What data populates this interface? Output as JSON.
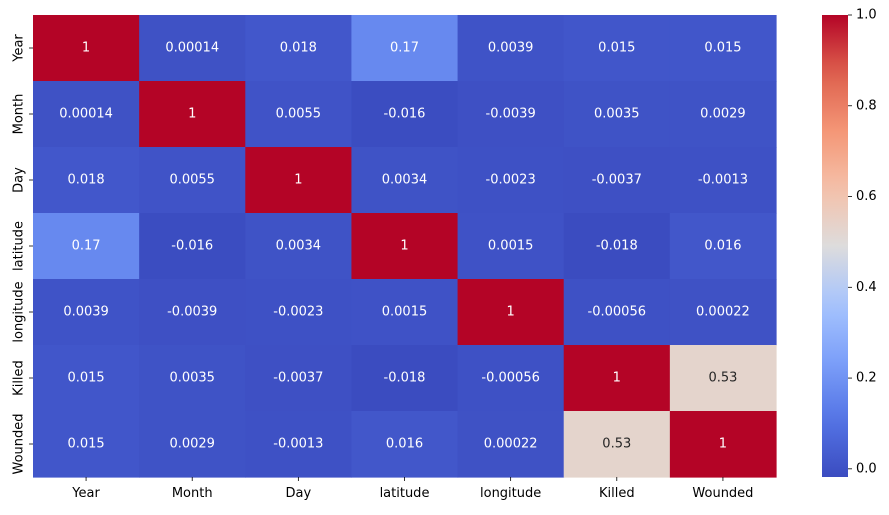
{
  "chart_data": {
    "type": "heatmap",
    "title": "",
    "xlabel": "",
    "ylabel": "",
    "x_categories": [
      "Year",
      "Month",
      "Day",
      "latitude",
      "longitude",
      "Killed",
      "Wounded"
    ],
    "y_categories": [
      "Year",
      "Month",
      "Day",
      "latitude",
      "longitude",
      "Killed",
      "Wounded"
    ],
    "values": [
      [
        1,
        0.00014,
        0.018,
        0.17,
        0.0039,
        0.015,
        0.015
      ],
      [
        0.00014,
        1,
        0.0055,
        -0.016,
        -0.0039,
        0.0035,
        0.0029
      ],
      [
        0.018,
        0.0055,
        1,
        0.0034,
        -0.0023,
        -0.0037,
        -0.0013
      ],
      [
        0.17,
        -0.016,
        0.0034,
        1,
        0.0015,
        -0.018,
        0.016
      ],
      [
        0.0039,
        -0.0039,
        -0.0023,
        0.0015,
        1,
        -0.00056,
        0.00022
      ],
      [
        0.015,
        0.0035,
        -0.0037,
        -0.018,
        -0.00056,
        1,
        0.53
      ],
      [
        0.015,
        0.0029,
        -0.0013,
        0.016,
        0.00022,
        0.53,
        1
      ]
    ],
    "annotations": [
      [
        "1",
        "0.00014",
        "0.018",
        "0.17",
        "0.0039",
        "0.015",
        "0.015"
      ],
      [
        "0.00014",
        "1",
        "0.0055",
        "-0.016",
        "-0.0039",
        "0.0035",
        "0.0029"
      ],
      [
        "0.018",
        "0.0055",
        "1",
        "0.0034",
        "-0.0023",
        "-0.0037",
        "-0.0013"
      ],
      [
        "0.17",
        "-0.016",
        "0.0034",
        "1",
        "0.0015",
        "-0.018",
        "0.016"
      ],
      [
        "0.0039",
        "-0.0039",
        "-0.0023",
        "0.0015",
        "1",
        "-0.00056",
        "0.00022"
      ],
      [
        "0.015",
        "0.0035",
        "-0.0037",
        "-0.018",
        "-0.00056",
        "1",
        "0.53"
      ],
      [
        "0.015",
        "0.0029",
        "-0.0013",
        "0.016",
        "0.00022",
        "0.53",
        "1"
      ]
    ],
    "colormap": "coolwarm",
    "vmin": -0.018,
    "vmax": 1,
    "colorbar": {
      "ticks": [
        0.0,
        0.2,
        0.4,
        0.6,
        0.8,
        1.0
      ],
      "tick_labels": [
        "0.0",
        "0.2",
        "0.4",
        "0.6",
        "0.8",
        "1.0"
      ]
    },
    "grid": false,
    "legend": "colorbar-right"
  }
}
